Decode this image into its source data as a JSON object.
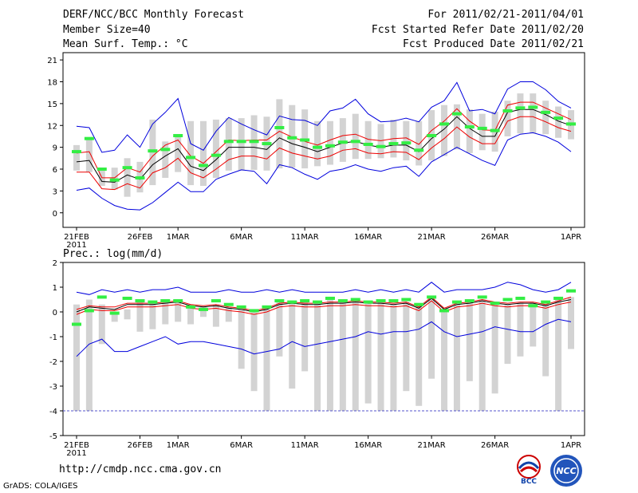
{
  "header": {
    "title": "DERF/NCC/BCC Monthly Forecast",
    "member_size": "Member Size=40",
    "variable": "Mean Surf. Temp.: °C",
    "period": "For 2011/02/21-2011/04/01",
    "refer_date": "Fcst Started Refer Date 2011/02/20",
    "produced_date": "Fcst Produced Date 2011/02/21"
  },
  "footer": {
    "url": "http://cmdp.ncc.cma.gov.cn",
    "grads": "GrADS: COLA/IGES",
    "logo_bcc": "BCC",
    "logo_ncc": "NCC"
  },
  "colors": {
    "spread_bar": "#d3d3d3",
    "mean_marker": "#33ee44",
    "ensemble_mean": "#000000",
    "inner_range": "#ee0000",
    "outer_range": "#0000dd",
    "reference_line": "#5555cc"
  },
  "chart_data": [
    {
      "id": "temperature",
      "type": "line",
      "title": "Mean Surf. Temp.: °C",
      "x_tick_labels": [
        "21FEB",
        "26FEB",
        "1MAR",
        "6MAR",
        "11MAR",
        "16MAR",
        "21MAR",
        "26MAR",
        "1APR"
      ],
      "x_tick_days": [
        0,
        5,
        8,
        13,
        18,
        23,
        28,
        33,
        39
      ],
      "x_year_label": "2011",
      "ylim": [
        -2,
        22
      ],
      "yticks": [
        0,
        3,
        6,
        9,
        12,
        15,
        18,
        21
      ],
      "series": [
        {
          "name": "ensemble_mean",
          "values": [
            7.0,
            7.2,
            4.3,
            4.2,
            5.2,
            4.6,
            6.6,
            7.8,
            8.8,
            6.4,
            5.8,
            7.3,
            9.0,
            9.0,
            9.0,
            8.7,
            10.3,
            9.5,
            9.0,
            8.4,
            9.0,
            9.6,
            9.8,
            9.3,
            9.0,
            9.3,
            9.3,
            8.4,
            10.2,
            11.5,
            13.2,
            11.6,
            10.5,
            10.5,
            13.8,
            14.2,
            14.2,
            13.5,
            12.6,
            12.0
          ]
        },
        {
          "name": "upper_inner",
          "values": [
            8.2,
            8.4,
            4.8,
            4.8,
            6.2,
            5.6,
            7.8,
            9.3,
            10.0,
            7.8,
            6.8,
            8.4,
            10.0,
            9.9,
            10.0,
            10.0,
            11.2,
            10.4,
            9.8,
            9.3,
            10.0,
            10.6,
            10.8,
            10.1,
            9.9,
            10.2,
            10.3,
            9.4,
            11.3,
            12.6,
            14.3,
            12.6,
            11.4,
            11.3,
            14.8,
            15.2,
            15.2,
            14.4,
            13.6,
            12.8
          ]
        },
        {
          "name": "lower_inner",
          "values": [
            5.6,
            5.6,
            3.3,
            3.2,
            4.0,
            3.4,
            5.5,
            6.2,
            7.5,
            5.5,
            4.8,
            6.0,
            7.3,
            7.8,
            7.8,
            7.4,
            8.9,
            8.2,
            7.8,
            7.4,
            7.8,
            8.6,
            8.8,
            8.2,
            8.1,
            8.4,
            8.3,
            7.3,
            8.9,
            10.2,
            11.8,
            10.4,
            9.5,
            9.5,
            12.6,
            13.2,
            13.2,
            12.5,
            11.7,
            11.2
          ]
        },
        {
          "name": "upper_outer",
          "values": [
            11.9,
            11.7,
            8.3,
            8.6,
            10.7,
            9.0,
            12.2,
            13.8,
            15.7,
            9.5,
            8.6,
            11.2,
            13.1,
            12.2,
            11.4,
            10.7,
            13.3,
            12.8,
            12.7,
            12.0,
            14.0,
            14.4,
            15.6,
            13.6,
            12.5,
            12.6,
            13.0,
            12.5,
            14.5,
            15.4,
            17.9,
            14.0,
            14.2,
            13.6,
            17.0,
            18.0,
            18.0,
            16.9,
            15.3,
            14.4
          ]
        },
        {
          "name": "lower_outer",
          "values": [
            3.1,
            3.4,
            2.0,
            1.0,
            0.5,
            0.4,
            1.4,
            2.8,
            4.2,
            2.9,
            2.9,
            4.6,
            5.3,
            5.9,
            5.7,
            4.0,
            6.6,
            6.2,
            5.3,
            4.6,
            5.7,
            6.0,
            6.6,
            6.0,
            5.7,
            6.2,
            6.4,
            5.0,
            7.0,
            8.0,
            9.0,
            8.1,
            7.2,
            6.5,
            10.0,
            10.8,
            11.0,
            10.5,
            9.7,
            8.4
          ]
        },
        {
          "name": "spread_high",
          "values": [
            9.3,
            10.3,
            6.2,
            6.2,
            7.5,
            7.0,
            12.8,
            9.8,
            10.4,
            12.6,
            12.6,
            12.8,
            13.0,
            13.0,
            13.4,
            13.2,
            15.6,
            14.8,
            14.2,
            12.6,
            12.6,
            13.0,
            13.6,
            12.6,
            12.2,
            12.8,
            12.6,
            12.6,
            14.1,
            14.8,
            14.9,
            14.2,
            13.6,
            13.9,
            15.4,
            16.4,
            16.4,
            15.4,
            14.6,
            14.1
          ]
        },
        {
          "name": "spread_low",
          "values": [
            5.8,
            5.6,
            3.7,
            3.2,
            2.2,
            2.8,
            3.8,
            4.8,
            5.6,
            3.8,
            3.7,
            4.8,
            5.8,
            5.8,
            5.9,
            5.8,
            6.1,
            6.2,
            6.1,
            6.4,
            6.6,
            7.0,
            7.4,
            7.4,
            7.5,
            7.6,
            7.2,
            6.5,
            7.2,
            7.8,
            8.7,
            8.2,
            8.6,
            8.4,
            10.5,
            10.9,
            10.9,
            10.8,
            10.3,
            10.1
          ]
        },
        {
          "name": "mean_marker",
          "values": [
            8.4,
            10.2,
            6.0,
            4.5,
            6.2,
            4.8,
            8.5,
            8.7,
            10.6,
            7.6,
            6.5,
            7.9,
            9.8,
            9.8,
            9.8,
            9.5,
            11.7,
            10.3,
            10.0,
            9.0,
            9.2,
            9.7,
            9.8,
            9.4,
            9.1,
            9.5,
            9.6,
            8.6,
            10.6,
            12.2,
            13.6,
            11.8,
            11.6,
            11.3,
            14.0,
            14.4,
            14.5,
            13.8,
            13.0,
            12.2
          ]
        }
      ]
    },
    {
      "id": "precipitation",
      "type": "line",
      "title": "Prec.: log(mm/d)",
      "x_tick_labels": [
        "21FEB",
        "26FEB",
        "1MAR",
        "6MAR",
        "11MAR",
        "16MAR",
        "21MAR",
        "26MAR",
        "1APR"
      ],
      "x_tick_days": [
        0,
        5,
        8,
        13,
        18,
        23,
        28,
        33,
        39
      ],
      "x_year_label": "2011",
      "ylim": [
        -5,
        2
      ],
      "yticks": [
        -5,
        -4,
        -3,
        -2,
        -1,
        0,
        1,
        2
      ],
      "reference_line": -4,
      "series": [
        {
          "name": "ensemble_mean",
          "values": [
            0.0,
            0.2,
            0.15,
            0.1,
            0.3,
            0.3,
            0.3,
            0.35,
            0.4,
            0.25,
            0.2,
            0.25,
            0.15,
            0.1,
            0.0,
            0.1,
            0.3,
            0.35,
            0.3,
            0.3,
            0.35,
            0.35,
            0.4,
            0.35,
            0.35,
            0.3,
            0.35,
            0.15,
            0.55,
            0.1,
            0.3,
            0.35,
            0.45,
            0.35,
            0.3,
            0.35,
            0.35,
            0.25,
            0.4,
            0.5
          ]
        },
        {
          "name": "upper_inner",
          "values": [
            0.1,
            0.25,
            0.2,
            0.2,
            0.35,
            0.35,
            0.35,
            0.4,
            0.45,
            0.3,
            0.25,
            0.3,
            0.2,
            0.15,
            0.05,
            0.15,
            0.35,
            0.4,
            0.35,
            0.35,
            0.4,
            0.4,
            0.45,
            0.4,
            0.4,
            0.35,
            0.4,
            0.2,
            0.6,
            0.15,
            0.35,
            0.4,
            0.5,
            0.4,
            0.35,
            0.4,
            0.4,
            0.3,
            0.45,
            0.6
          ]
        },
        {
          "name": "lower_inner",
          "values": [
            -0.1,
            0.1,
            0.05,
            0.05,
            0.2,
            0.2,
            0.2,
            0.25,
            0.3,
            0.15,
            0.1,
            0.15,
            0.05,
            0.0,
            -0.1,
            0.0,
            0.2,
            0.25,
            0.2,
            0.2,
            0.25,
            0.25,
            0.3,
            0.25,
            0.25,
            0.2,
            0.25,
            0.05,
            0.45,
            0.0,
            0.2,
            0.25,
            0.35,
            0.25,
            0.2,
            0.25,
            0.25,
            0.15,
            0.3,
            0.4
          ]
        },
        {
          "name": "upper_outer",
          "values": [
            0.8,
            0.7,
            0.9,
            0.8,
            0.9,
            0.8,
            0.9,
            0.9,
            1.0,
            0.8,
            0.8,
            0.8,
            0.9,
            0.8,
            0.8,
            0.9,
            0.8,
            0.9,
            0.8,
            0.8,
            0.8,
            0.8,
            0.9,
            0.8,
            0.9,
            0.8,
            0.9,
            0.8,
            1.2,
            0.8,
            0.9,
            0.9,
            0.9,
            1.0,
            1.2,
            1.1,
            0.9,
            0.8,
            0.9,
            1.2
          ]
        },
        {
          "name": "lower_outer",
          "values": [
            -1.8,
            -1.3,
            -1.1,
            -1.6,
            -1.6,
            -1.4,
            -1.2,
            -1.0,
            -1.3,
            -1.2,
            -1.2,
            -1.3,
            -1.4,
            -1.5,
            -1.7,
            -1.6,
            -1.5,
            -1.2,
            -1.4,
            -1.3,
            -1.2,
            -1.1,
            -1.0,
            -0.8,
            -0.9,
            -0.8,
            -0.8,
            -0.7,
            -0.4,
            -0.8,
            -1.0,
            -0.9,
            -0.8,
            -0.6,
            -0.7,
            -0.8,
            -0.8,
            -0.5,
            -0.3,
            -0.4
          ]
        },
        {
          "name": "spread_high",
          "values": [
            0.3,
            0.5,
            0.3,
            0.0,
            0.1,
            0.4,
            0.4,
            0.4,
            0.5,
            0.3,
            0.2,
            0.3,
            0.2,
            0.1,
            0.1,
            0.2,
            0.4,
            0.4,
            0.4,
            0.4,
            0.5,
            0.4,
            0.5,
            0.4,
            0.4,
            0.3,
            0.4,
            0.3,
            0.6,
            0.1,
            0.4,
            0.4,
            0.5,
            0.4,
            0.3,
            0.4,
            0.4,
            0.3,
            0.5,
            0.6
          ]
        },
        {
          "name": "spread_low",
          "values": [
            -4.0,
            -4.0,
            -1.3,
            -0.4,
            -0.3,
            -0.8,
            -0.7,
            -0.5,
            -0.4,
            -0.5,
            -0.2,
            -0.6,
            -0.4,
            -2.3,
            -3.2,
            -4.0,
            -1.8,
            -3.1,
            -2.4,
            -4.0,
            -4.0,
            -4.0,
            -4.0,
            -3.7,
            -4.0,
            -4.0,
            -3.2,
            -3.8,
            -2.7,
            -4.0,
            -4.0,
            -2.8,
            -4.0,
            -3.3,
            -2.1,
            -1.8,
            -1.4,
            -2.6,
            -4.0,
            -1.5
          ]
        },
        {
          "name": "mean_marker",
          "values": [
            -0.5,
            0.05,
            0.6,
            -0.05,
            0.55,
            0.45,
            0.4,
            0.45,
            0.45,
            0.2,
            0.1,
            0.45,
            0.3,
            0.2,
            0.05,
            0.2,
            0.45,
            0.4,
            0.45,
            0.4,
            0.55,
            0.45,
            0.5,
            0.4,
            0.45,
            0.45,
            0.5,
            0.3,
            0.6,
            0.05,
            0.4,
            0.45,
            0.6,
            0.35,
            0.5,
            0.55,
            0.25,
            0.4,
            0.55,
            0.85
          ]
        }
      ]
    }
  ]
}
